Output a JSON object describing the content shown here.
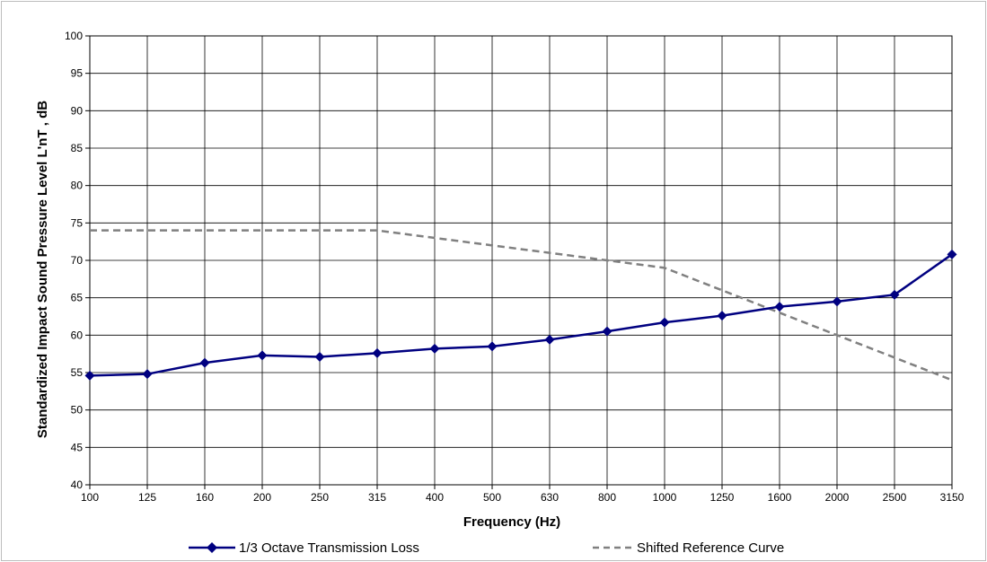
{
  "chart_data": {
    "type": "line",
    "title": "",
    "xlabel": "Frequency (Hz)",
    "ylabel": "Standardized Impact Sound Pressure Level L'nT , dB",
    "categories": [
      "100",
      "125",
      "160",
      "200",
      "250",
      "315",
      "400",
      "500",
      "630",
      "800",
      "1000",
      "1250",
      "1600",
      "2000",
      "2500",
      "3150"
    ],
    "ylim": [
      40,
      100
    ],
    "yticks": [
      "40",
      "45",
      "50",
      "55",
      "60",
      "65",
      "70",
      "75",
      "80",
      "85",
      "90",
      "95",
      "100"
    ],
    "grid": true,
    "legend_position": "bottom",
    "series": [
      {
        "name": "1/3 Octave Transmission Loss",
        "style": "solid-diamond",
        "color": "#000080",
        "values": [
          54.6,
          54.8,
          56.3,
          57.3,
          57.1,
          57.6,
          58.2,
          58.5,
          59.4,
          60.5,
          61.7,
          62.6,
          63.8,
          64.5,
          65.4,
          70.8
        ]
      },
      {
        "name": "Shifted Reference Curve",
        "style": "dashed",
        "color": "#808080",
        "values": [
          74,
          74,
          74,
          74,
          74,
          74,
          73,
          72,
          71,
          70,
          69,
          66,
          63,
          60,
          57,
          54
        ]
      }
    ]
  }
}
